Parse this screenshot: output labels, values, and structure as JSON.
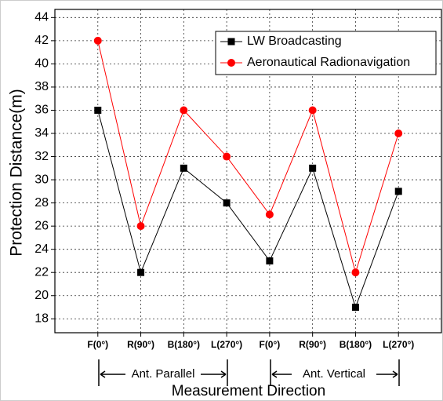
{
  "chart_data": {
    "type": "line",
    "x_label": "Measurement Direction",
    "y_label": "Protection Distance(m)",
    "categories": [
      "F(0°)",
      "R(90°)",
      "B(180°)",
      "L(270°)",
      "F(0°)",
      "R(90°)",
      "B(180°)",
      "L(270°)"
    ],
    "series": [
      {
        "name": "LW Broadcasting",
        "color": "#000000",
        "marker": "square",
        "values": [
          36,
          22,
          31,
          28,
          23,
          31,
          19,
          29
        ]
      },
      {
        "name": "Aeronautical Radionavigation",
        "color": "#ff0000",
        "marker": "circle",
        "values": [
          42,
          26,
          36,
          32,
          27,
          36,
          22,
          34
        ]
      }
    ],
    "ylim": [
      16.8,
      44.7
    ],
    "yticks": [
      18,
      20,
      22,
      24,
      26,
      28,
      30,
      32,
      34,
      36,
      38,
      40,
      42,
      44
    ],
    "grid": true,
    "legend": "top-right",
    "annotations": [
      "Ant. Parallel",
      "Ant. Vertical"
    ]
  }
}
